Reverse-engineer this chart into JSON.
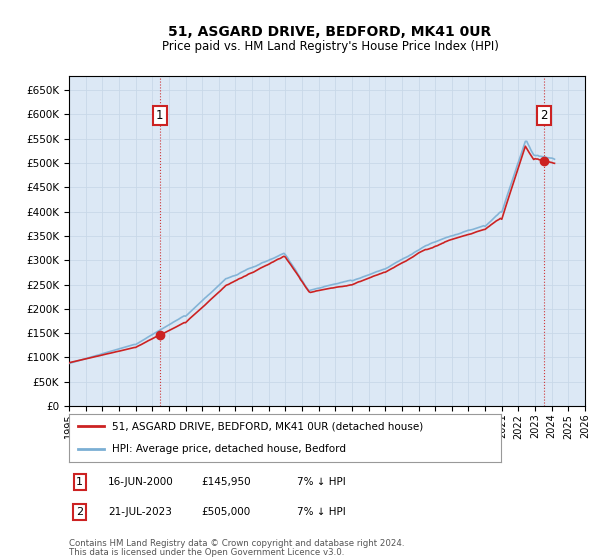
{
  "title": "51, ASGARD DRIVE, BEDFORD, MK41 0UR",
  "subtitle": "Price paid vs. HM Land Registry's House Price Index (HPI)",
  "title_fontsize": 10,
  "subtitle_fontsize": 8.5,
  "ytick_values": [
    0,
    50000,
    100000,
    150000,
    200000,
    250000,
    300000,
    350000,
    400000,
    450000,
    500000,
    550000,
    600000,
    650000
  ],
  "ylim": [
    0,
    680000
  ],
  "xlim_years": [
    1995,
    2026
  ],
  "x_tick_years": [
    1995,
    1996,
    1997,
    1998,
    1999,
    2000,
    2001,
    2002,
    2003,
    2004,
    2005,
    2006,
    2007,
    2008,
    2009,
    2010,
    2011,
    2012,
    2013,
    2014,
    2015,
    2016,
    2017,
    2018,
    2019,
    2020,
    2021,
    2022,
    2023,
    2024,
    2025,
    2026
  ],
  "hpi_color": "#7bafd4",
  "price_color": "#cc2222",
  "grid_color": "#c8d8e8",
  "bg_color": "#ffffff",
  "plot_bg_color": "#dce8f5",
  "annotation1_label": "1",
  "annotation1_date": "16-JUN-2000",
  "annotation1_price": "£145,950",
  "annotation1_hpi_pct": "7% ↓ HPI",
  "annotation1_year": 2000.46,
  "annotation1_value": 145950,
  "annotation2_label": "2",
  "annotation2_date": "21-JUL-2023",
  "annotation2_price": "£505,000",
  "annotation2_hpi_pct": "7% ↓ HPI",
  "annotation2_year": 2023.54,
  "annotation2_value": 505000,
  "legend_line1": "51, ASGARD DRIVE, BEDFORD, MK41 0UR (detached house)",
  "legend_line2": "HPI: Average price, detached house, Bedford",
  "footer_line1": "Contains HM Land Registry data © Crown copyright and database right 2024.",
  "footer_line2": "This data is licensed under the Open Government Licence v3.0.",
  "table_row1": [
    "1",
    "16-JUN-2000",
    "£145,950",
    "7% ↓ HPI"
  ],
  "table_row2": [
    "2",
    "21-JUL-2023",
    "£505,000",
    "7% ↓ HPI"
  ]
}
